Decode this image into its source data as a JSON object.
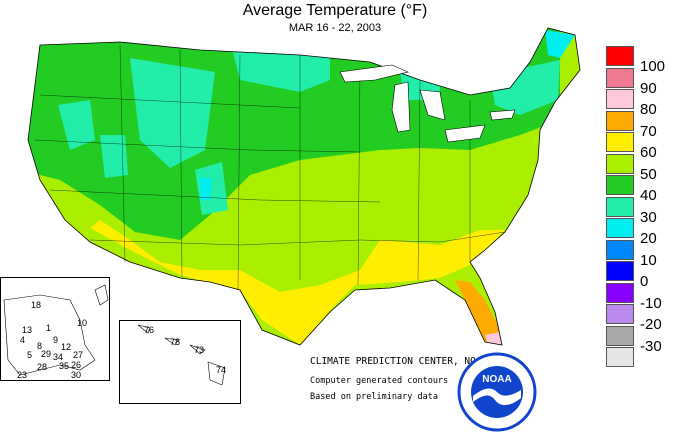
{
  "header": {
    "title": "Average Temperature (°F)",
    "subtitle": "MAR 16 - 22, 2003"
  },
  "legend": {
    "items": [
      {
        "label": "100",
        "color": "#ff0000"
      },
      {
        "label": "90",
        "color": "#f07890"
      },
      {
        "label": "80",
        "color": "#ffc8dc"
      },
      {
        "label": "70",
        "color": "#ffaa00"
      },
      {
        "label": "60",
        "color": "#ffee00"
      },
      {
        "label": "50",
        "color": "#aaee00"
      },
      {
        "label": "40",
        "color": "#22cc22"
      },
      {
        "label": "30",
        "color": "#22eeaa"
      },
      {
        "label": "20",
        "color": "#00eeee"
      },
      {
        "label": "10",
        "color": "#0088ff"
      },
      {
        "label": "0",
        "color": "#0000ff"
      },
      {
        "label": "-10",
        "color": "#8800ff"
      },
      {
        "label": "-20",
        "color": "#bb88ee"
      },
      {
        "label": "-30",
        "color": "#aaaaaa"
      }
    ],
    "bottom_color": "#e6e6e6"
  },
  "credits": {
    "center": "CLIMATE PREDICTION CENTER, NOAA",
    "contours": "Computer generated contours",
    "data": "Based on preliminary data"
  },
  "alaska_stations": [
    "18",
    "10",
    "13",
    "4",
    "1",
    "9",
    "8",
    "12",
    "29",
    "34",
    "27",
    "5",
    "26",
    "28",
    "35",
    "30",
    "23"
  ],
  "hawaii_stations": [
    "76",
    "78",
    "73",
    "74"
  ],
  "logo": {
    "text": "NOAA",
    "color": "#1144cc"
  }
}
